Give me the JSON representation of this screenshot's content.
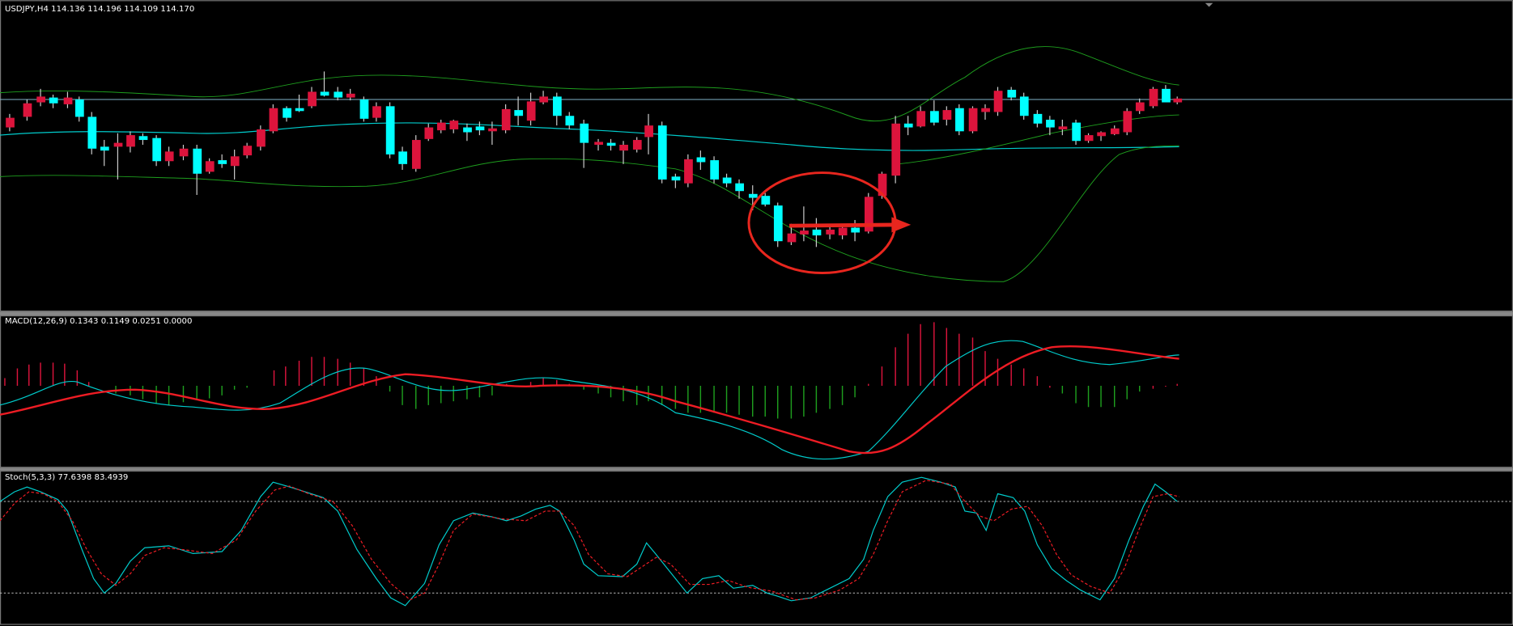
{
  "main_panel": {
    "label": "USDJPY,H4  114.136 114.196 114.109 114.170"
  },
  "macd_panel": {
    "label": "MACD(12,26,9) 0.1343 0.1149 0.0251 0.0000"
  },
  "stoch_panel": {
    "label": "Stoch(5,3,3) 77.6398 83.4939"
  }
}
